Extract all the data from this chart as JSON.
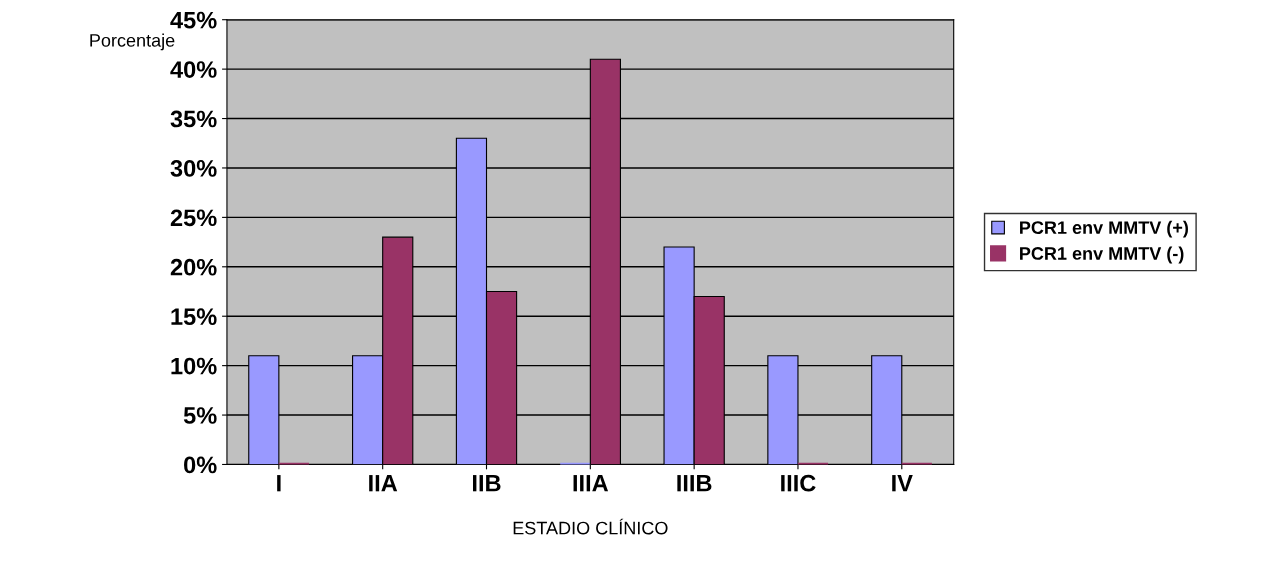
{
  "chart_data": {
    "type": "bar",
    "xlabel": "ESTADIO CLÍNICO",
    "ylabel": "Porcentaje",
    "categories": [
      "I",
      "IIA",
      "IIB",
      "IIIA",
      "IIIB",
      "IIIC",
      "IV"
    ],
    "series": [
      {
        "name": "PCR1 env MMTV (+)",
        "color": "#9999ff",
        "values": [
          11,
          11,
          33,
          0,
          22,
          11,
          11
        ]
      },
      {
        "name": "PCR1 env MMTV (-)",
        "color": "#993366",
        "values": [
          0,
          23,
          17.5,
          41,
          17,
          0,
          0
        ]
      }
    ],
    "ylim": [
      0,
      45
    ],
    "yticks": [
      {
        "value": 0,
        "label": "0%"
      },
      {
        "value": 5,
        "label": "5%"
      },
      {
        "value": 10,
        "label": "10%"
      },
      {
        "value": 15,
        "label": "15%"
      },
      {
        "value": 20,
        "label": "20%"
      },
      {
        "value": 25,
        "label": "25%"
      },
      {
        "value": 30,
        "label": "30%"
      },
      {
        "value": 35,
        "label": "35%"
      },
      {
        "value": 40,
        "label": "40%"
      },
      {
        "value": 45,
        "label": "45%"
      }
    ],
    "grid": "y",
    "legend": "right"
  }
}
